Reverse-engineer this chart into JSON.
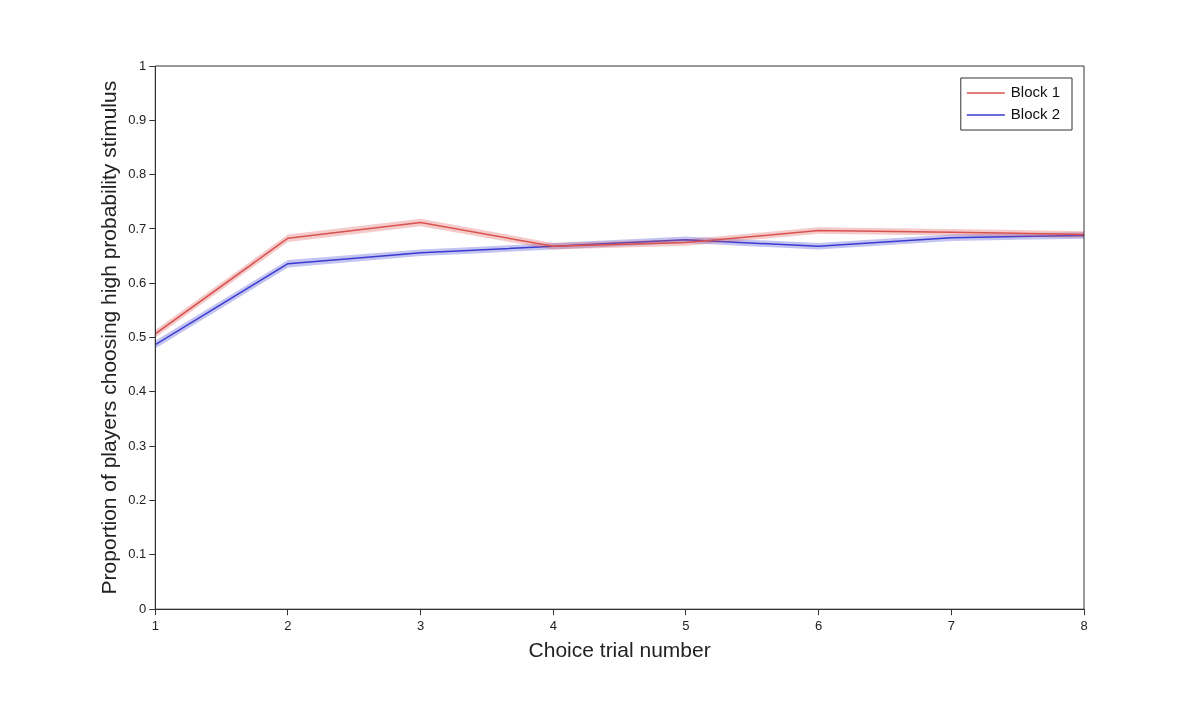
{
  "chart_data": {
    "type": "line",
    "xlabel": "Choice trial number",
    "ylabel": "Proportion of players choosing high probability stimulus",
    "x": [
      1,
      2,
      3,
      4,
      5,
      6,
      7,
      8
    ],
    "series": [
      {
        "name": "Block 1",
        "color": "#d9534f",
        "values": [
          0.507,
          0.683,
          0.712,
          0.668,
          0.675,
          0.697,
          0.694,
          0.69
        ],
        "lower": [
          0.5,
          0.676,
          0.705,
          0.662,
          0.669,
          0.691,
          0.688,
          0.684
        ],
        "upper": [
          0.514,
          0.69,
          0.719,
          0.674,
          0.681,
          0.703,
          0.7,
          0.696
        ]
      },
      {
        "name": "Block 2",
        "color": "#3b3bd1",
        "values": [
          0.487,
          0.636,
          0.656,
          0.668,
          0.68,
          0.668,
          0.684,
          0.688
        ],
        "lower": [
          0.48,
          0.629,
          0.65,
          0.662,
          0.674,
          0.662,
          0.678,
          0.682
        ],
        "upper": [
          0.494,
          0.643,
          0.662,
          0.674,
          0.686,
          0.674,
          0.69,
          0.694
        ]
      }
    ],
    "xlim": [
      1,
      8
    ],
    "xticks": [
      1,
      2,
      3,
      4,
      5,
      6,
      7,
      8
    ],
    "ylim": [
      0,
      1
    ],
    "yticks": [
      0,
      0.1,
      0.2,
      0.3,
      0.4,
      0.5,
      0.6,
      0.7,
      0.8,
      0.9,
      1
    ],
    "grid": false,
    "legend": "top right",
    "marker": "none",
    "line_style": "solid"
  }
}
